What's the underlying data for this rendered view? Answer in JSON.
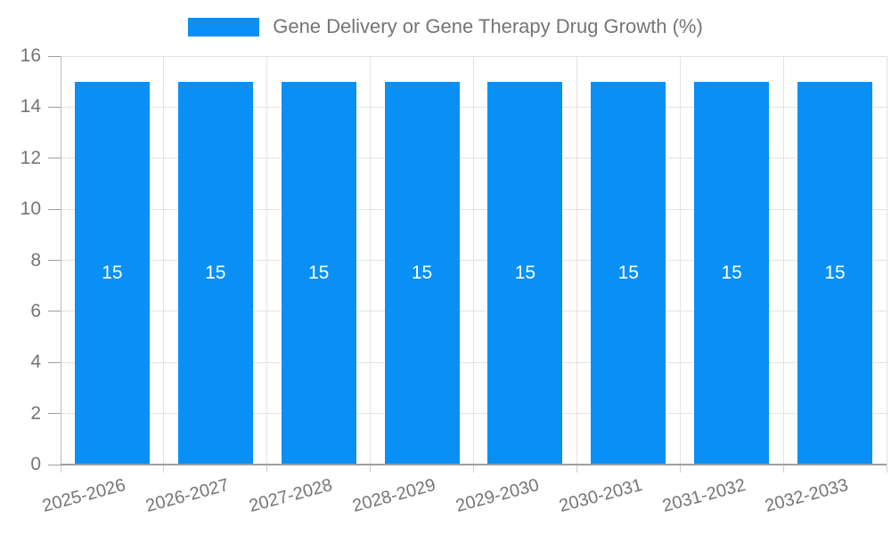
{
  "chart_data": {
    "type": "bar",
    "title": "",
    "legend": "Gene Delivery or Gene Therapy Drug Growth (%)",
    "legend_position": "top-center",
    "categories": [
      "2025-2026",
      "2026-2027",
      "2027-2028",
      "2028-2029",
      "2029-2030",
      "2030-2031",
      "2031-2032",
      "2032-2033"
    ],
    "values": [
      15,
      15,
      15,
      15,
      15,
      15,
      15,
      15
    ],
    "bar_value_labels": [
      "15",
      "15",
      "15",
      "15",
      "15",
      "15",
      "15",
      "15"
    ],
    "xlabel": "",
    "ylabel": "",
    "ylim": [
      0,
      16
    ],
    "ytick_step": 2,
    "ytick_labels": [
      "0",
      "2",
      "4",
      "6",
      "8",
      "10",
      "12",
      "14",
      "16"
    ],
    "x_label_rotation_deg": -15,
    "grid": true,
    "colors": {
      "bar": "#0a90f5",
      "bar_label": "#ffffff",
      "grid": "#e3e3e3",
      "axis": "#9e9e9e",
      "axis_vertical": "#bdbdbd",
      "tick": "#cfcfcf",
      "text": "#757575"
    }
  }
}
